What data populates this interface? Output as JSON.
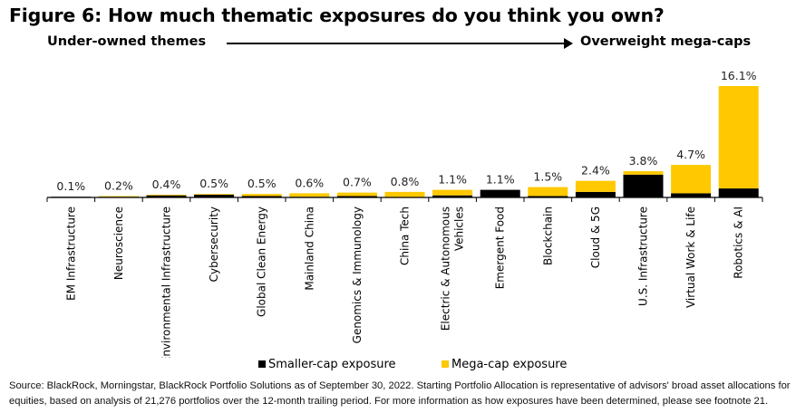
{
  "title": "Figure 6: How much thematic exposures do you think you own?",
  "left_label": "Under-owned themes",
  "right_label": "Overweight mega-caps",
  "legend": {
    "small_cap": "Smaller-cap exposure",
    "mega_cap": "Mega-cap exposure"
  },
  "colors": {
    "small_cap": "#000000",
    "mega_cap": "#FFC800"
  },
  "source": "Source: BlackRock, Morningstar, BlackRock Portfolio Solutions as of September 30, 2022. Starting Portfolio Allocation is representative of advisors' broad asset allocations for equities, based on analysis of 21,276 portfolios over the 12-month trailing period.  For more information as how exposures have been determined, please see footnote 21.",
  "chart_data": {
    "type": "bar",
    "stacked": true,
    "categories": [
      "EM Infrastructure",
      "Neuroscience",
      "Environmental Infrastructure",
      "Cybersecurity",
      "Global Clean Energy",
      "Mainland China",
      "Genomics & Immunology",
      "China Tech",
      "Electric & Autonomous Vehicles",
      "Emergent Food",
      "Blockchain",
      "Cloud & 5G",
      "U.S. Infrastructure",
      "Virtual Work & Life",
      "Robotics & AI"
    ],
    "category_lines": [
      [
        "EM Infrastructure"
      ],
      [
        "Neuroscience"
      ],
      [
        "Environmental Infrastructure"
      ],
      [
        "Cybersecurity"
      ],
      [
        "Global Clean Energy"
      ],
      [
        "Mainland China"
      ],
      [
        "Genomics & Immunology"
      ],
      [
        "China Tech"
      ],
      [
        "Electric & Autonomous",
        "Vehicles"
      ],
      [
        "Emergent Food"
      ],
      [
        "Blockchain"
      ],
      [
        "Cloud & 5G"
      ],
      [
        "U.S. Infrastructure"
      ],
      [
        "Virtual Work & Life"
      ],
      [
        "Robotics & AI"
      ]
    ],
    "series": [
      {
        "name": "Smaller-cap exposure",
        "values": [
          0.1,
          0.1,
          0.3,
          0.4,
          0.2,
          0.1,
          0.2,
          0.0,
          0.3,
          1.1,
          0.2,
          0.8,
          3.3,
          0.6,
          1.3
        ]
      },
      {
        "name": "Mega-cap exposure",
        "values": [
          0.0,
          0.1,
          0.1,
          0.1,
          0.3,
          0.5,
          0.5,
          0.8,
          0.8,
          0.0,
          1.3,
          1.6,
          0.5,
          4.1,
          14.8
        ]
      }
    ],
    "totals": [
      0.1,
      0.2,
      0.4,
      0.5,
      0.5,
      0.6,
      0.7,
      0.8,
      1.1,
      1.1,
      1.5,
      2.4,
      3.8,
      4.7,
      16.1
    ],
    "data_labels": [
      "0.1%",
      "0.2%",
      "0.4%",
      "0.5%",
      "0.5%",
      "0.6%",
      "0.7%",
      "0.8%",
      "1.1%",
      "1.1%",
      "1.5%",
      "2.4%",
      "3.8%",
      "4.7%",
      "16.1%"
    ],
    "ylim": [
      0,
      16.1
    ],
    "grid": false,
    "legend_position": "bottom"
  }
}
